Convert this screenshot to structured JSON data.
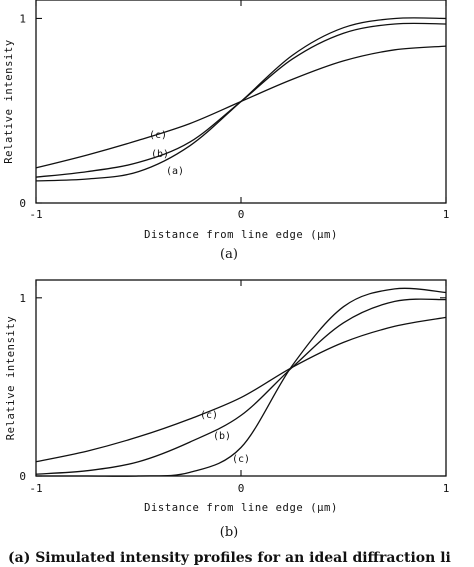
{
  "chart_data": [
    {
      "type": "line",
      "panel_label": "(a)",
      "xlabel": "Distance from line edge (μm)",
      "ylabel": "Relative intensity",
      "xlim": [
        -1,
        1
      ],
      "ylim": [
        0,
        1.1
      ],
      "x_ticks": [
        "-1",
        "0",
        "1"
      ],
      "y_ticks": [
        "0",
        "1"
      ],
      "series": [
        {
          "name": "(a)",
          "x": [
            -1,
            -0.75,
            -0.5,
            -0.25,
            0,
            0.25,
            0.5,
            0.75,
            1
          ],
          "values": [
            0.12,
            0.13,
            0.17,
            0.31,
            0.55,
            0.8,
            0.95,
            1.0,
            1.0
          ]
        },
        {
          "name": "(b)",
          "x": [
            -1,
            -0.75,
            -0.5,
            -0.25,
            0,
            0.25,
            0.5,
            0.75,
            1
          ],
          "values": [
            0.14,
            0.17,
            0.22,
            0.33,
            0.55,
            0.78,
            0.92,
            0.97,
            0.97
          ]
        },
        {
          "name": "(c)",
          "x": [
            -1,
            -0.75,
            -0.5,
            -0.25,
            0,
            0.25,
            0.5,
            0.75,
            1
          ],
          "values": [
            0.19,
            0.26,
            0.34,
            0.43,
            0.55,
            0.67,
            0.77,
            0.83,
            0.85
          ]
        }
      ]
    },
    {
      "type": "line",
      "panel_label": "(b)",
      "xlabel": "Distance from line edge (μm)",
      "ylabel": "Relative intensity",
      "xlim": [
        -1,
        1
      ],
      "ylim": [
        0,
        1.1
      ],
      "x_ticks": [
        "-1",
        "0",
        "1"
      ],
      "y_ticks": [
        "0",
        "1"
      ],
      "series": [
        {
          "name": "(c)",
          "x": [
            -1,
            -0.75,
            -0.5,
            -0.25,
            0,
            0.25,
            0.5,
            0.75,
            1
          ],
          "values": [
            0.0,
            0.0,
            0.0,
            0.02,
            0.16,
            0.62,
            0.95,
            1.05,
            1.03
          ]
        },
        {
          "name": "(b)",
          "x": [
            -1,
            -0.75,
            -0.5,
            -0.25,
            0,
            0.25,
            0.5,
            0.75,
            1
          ],
          "values": [
            0.01,
            0.03,
            0.08,
            0.19,
            0.34,
            0.61,
            0.86,
            0.98,
            0.99
          ]
        },
        {
          "name": "(c)",
          "x": [
            -1,
            -0.75,
            -0.5,
            -0.25,
            0,
            0.25,
            0.5,
            0.75,
            1
          ],
          "values": [
            0.08,
            0.14,
            0.22,
            0.32,
            0.44,
            0.61,
            0.75,
            0.84,
            0.89
          ]
        }
      ]
    }
  ],
  "caption": "(a) Simulated intensity profiles for an ideal diffraction li"
}
